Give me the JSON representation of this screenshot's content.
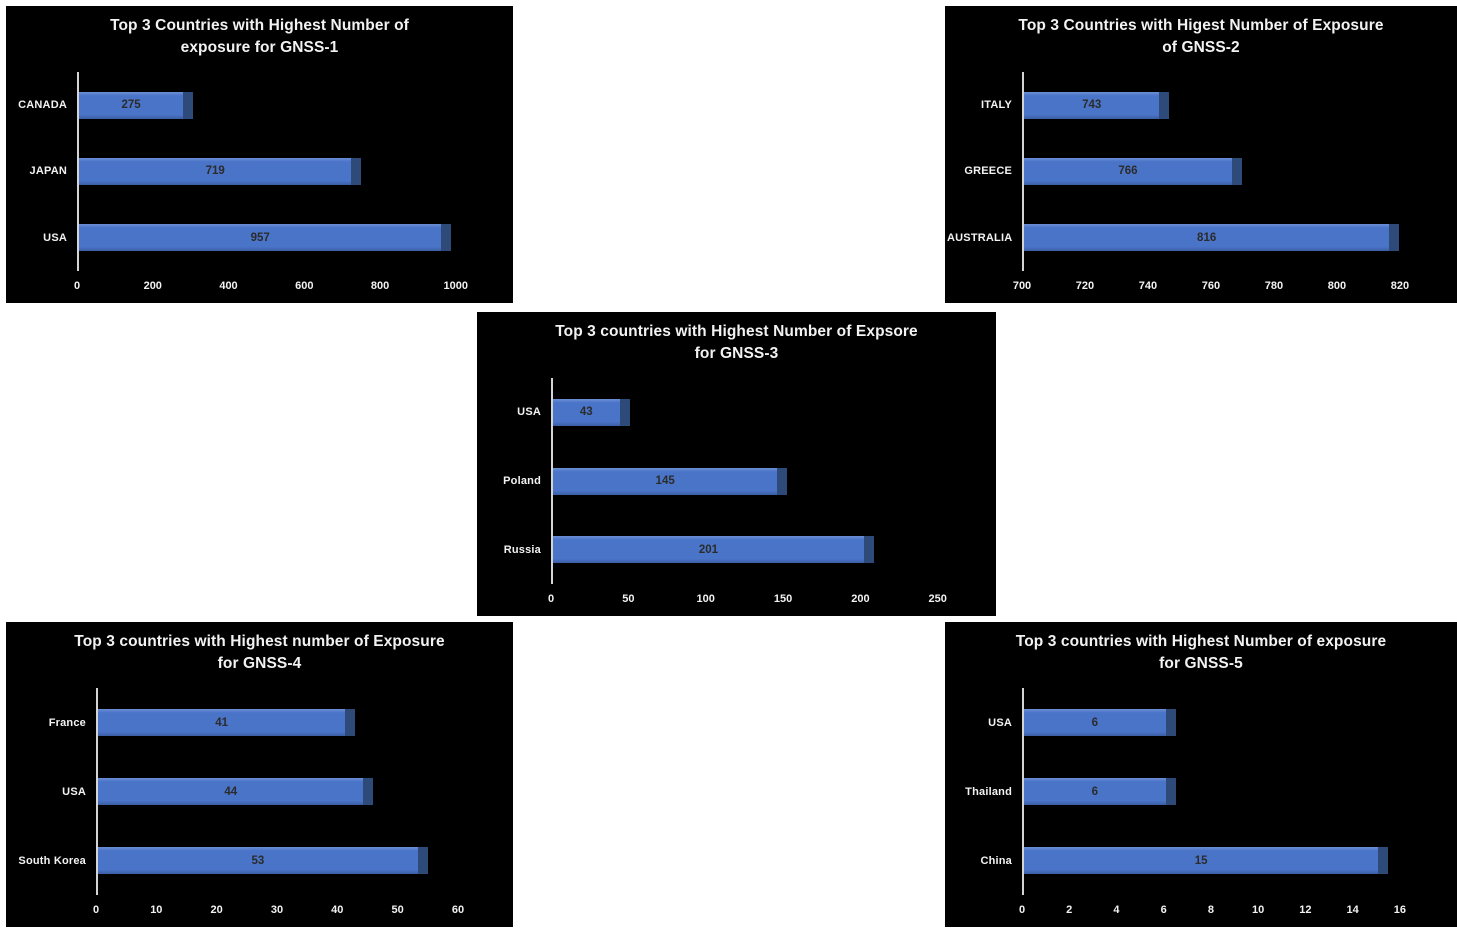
{
  "page": {
    "background": "#ffffff"
  },
  "theme": {
    "panel_background": "#000000",
    "bar_color": "#4a74c8",
    "bar_cap_color": "#2e4a78",
    "axis_line_color": "#d4d4d4",
    "text_color": "#f2f2f2",
    "value_label_color": "#2b2b2b"
  },
  "chart_data": [
    {
      "type": "bar",
      "orientation": "horizontal",
      "title": "Top 3 Countries with Highest Number of exposure for GNSS-1",
      "title_lines": [
        "Top 3 Countries with Highest Number of",
        "exposure for GNSS-1"
      ],
      "categories": [
        "CANADA",
        "JAPAN",
        "USA"
      ],
      "values": [
        275,
        719,
        957
      ],
      "data_labels": [
        "275",
        "719",
        "957"
      ],
      "xticks": [
        0,
        200,
        400,
        600,
        800,
        1000
      ],
      "xlim": [
        0,
        1130
      ],
      "xlabel": "",
      "ylabel": "",
      "grid": false,
      "legend": false
    },
    {
      "type": "bar",
      "orientation": "horizontal",
      "title": "Top 3 Countries with Higest Number of Exposure of GNSS-2",
      "title_lines": [
        "Top 3 Countries with Higest Number of Exposure",
        "of GNSS-2"
      ],
      "categories": [
        "ITALY",
        "GREECE",
        "AUSTRALIA"
      ],
      "values": [
        743,
        766,
        816
      ],
      "data_labels": [
        "743",
        "766",
        "816"
      ],
      "xticks": [
        700,
        720,
        740,
        760,
        780,
        800,
        820
      ],
      "xlim": [
        700,
        835
      ],
      "xlabel": "",
      "ylabel": "",
      "grid": false,
      "legend": false
    },
    {
      "type": "bar",
      "orientation": "horizontal",
      "title": "Top 3 countries with Highest Number of Expsore for GNSS-3",
      "title_lines": [
        "Top 3 countries with Highest Number of Expsore",
        "for GNSS-3"
      ],
      "categories": [
        "USA",
        "Poland",
        "Russia"
      ],
      "values": [
        43,
        145,
        201
      ],
      "data_labels": [
        "43",
        "145",
        "201"
      ],
      "xticks": [
        0,
        50,
        100,
        150,
        200,
        250
      ],
      "xlim": [
        0,
        282
      ],
      "xlabel": "",
      "ylabel": "",
      "grid": false,
      "legend": false
    },
    {
      "type": "bar",
      "orientation": "horizontal",
      "title": "Top 3 countries with Highest number of Exposure for GNSS-4",
      "title_lines": [
        "Top 3 countries with Highest number of Exposure",
        "for GNSS-4"
      ],
      "categories": [
        "France",
        "USA",
        "South Korea"
      ],
      "values": [
        41,
        44,
        53
      ],
      "data_labels": [
        "41",
        "44",
        "53"
      ],
      "xticks": [
        0,
        10,
        20,
        30,
        40,
        50,
        60
      ],
      "xlim": [
        0,
        68
      ],
      "xlabel": "",
      "ylabel": "",
      "grid": false,
      "legend": false
    },
    {
      "type": "bar",
      "orientation": "horizontal",
      "title": "Top 3 countries with Highest Number of exposure for GNSS-5",
      "title_lines": [
        "Top 3 countries with Highest Number of exposure",
        "for GNSS-5"
      ],
      "categories": [
        "USA",
        "Thailand",
        "China"
      ],
      "values": [
        6,
        6,
        15
      ],
      "data_labels": [
        "6",
        "6",
        "15"
      ],
      "xticks": [
        0,
        2,
        4,
        6,
        8,
        10,
        12,
        14,
        16
      ],
      "xlim": [
        0,
        18
      ],
      "xlabel": "",
      "ylabel": "",
      "grid": false,
      "legend": false
    }
  ]
}
